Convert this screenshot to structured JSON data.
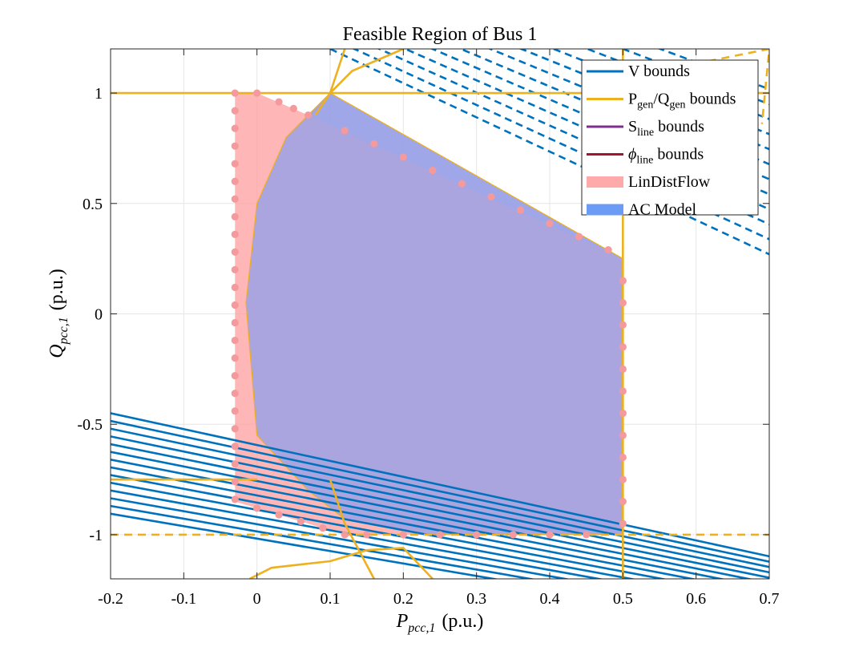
{
  "chart_data": {
    "type": "area",
    "title": "Feasible Region of Bus 1",
    "xlabel_main": "P",
    "xlabel_sub": "pcc,1",
    "xlabel_unit": "(p.u.)",
    "ylabel_main": "Q",
    "ylabel_sub": "pcc,1",
    "ylabel_unit": "(p.u.)",
    "xlim": [
      -0.2,
      0.7
    ],
    "ylim": [
      -1.2,
      1.2
    ],
    "grid": true,
    "legend_position": "top-right",
    "xticks": [
      {
        "v": -0.2,
        "label": "-0.2"
      },
      {
        "v": -0.1,
        "label": "-0.1"
      },
      {
        "v": 0,
        "label": "0"
      },
      {
        "v": 0.1,
        "label": "0.1"
      },
      {
        "v": 0.2,
        "label": "0.2"
      },
      {
        "v": 0.3,
        "label": "0.3"
      },
      {
        "v": 0.4,
        "label": "0.4"
      },
      {
        "v": 0.5,
        "label": "0.5"
      },
      {
        "v": 0.6,
        "label": "0.6"
      },
      {
        "v": 0.7,
        "label": "0.7"
      }
    ],
    "yticks": [
      {
        "v": 1,
        "label": "1"
      },
      {
        "v": 0.5,
        "label": "0.5"
      },
      {
        "v": 0,
        "label": "0"
      },
      {
        "v": -0.5,
        "label": "-0.5"
      },
      {
        "v": -1,
        "label": "-1"
      }
    ],
    "legend": [
      {
        "main": "V bounds",
        "sub": "",
        "tail": "",
        "color": "#0072BD",
        "kind": "line"
      },
      {
        "main": "P",
        "sub": "gen",
        "tail": "/Q",
        "sub2": "gen",
        "tail2": " bounds",
        "color": "#EDB120",
        "kind": "line"
      },
      {
        "main": "S",
        "sub": "line",
        "tail": " bounds",
        "color": "#7E2F8E",
        "kind": "line"
      },
      {
        "main": "ϕ",
        "sub": "line",
        "tail": " bounds",
        "color": "#A2142F",
        "kind": "line",
        "italic": true
      },
      {
        "main": "LinDistFlow",
        "sub": "",
        "tail": "",
        "color": "#FFAAAA",
        "kind": "patch"
      },
      {
        "main": "AC Model",
        "sub": "",
        "tail": "",
        "color": "#6B9BF5",
        "kind": "patch"
      }
    ],
    "colors": {
      "v_bounds": "#0072BD",
      "pq_bounds": "#EDB120",
      "lindistflow_fill": "#FF9E9E",
      "lindistflow_markers": "#F49A9C",
      "ac_fill": "#6E96F2",
      "overlap_fill": "#A0A5E6"
    },
    "series": [
      {
        "name": "LinDistFlow",
        "polygon": [
          [
            -0.03,
            1.0
          ],
          [
            0.0,
            1.0
          ],
          [
            0.07,
            0.9
          ],
          [
            0.5,
            0.25
          ],
          [
            0.5,
            -1.0
          ],
          [
            0.25,
            -1.0
          ],
          [
            0.12,
            -1.0
          ],
          [
            -0.03,
            -0.85
          ]
        ]
      },
      {
        "name": "AC Model",
        "polygon": [
          [
            0.1,
            1.0
          ],
          [
            0.5,
            0.25
          ],
          [
            0.5,
            -1.0
          ],
          [
            0.23,
            -1.0
          ],
          [
            0.12,
            -0.93
          ],
          [
            0.07,
            -0.8
          ],
          [
            0.0,
            -0.55
          ],
          [
            -0.015,
            0.05
          ],
          [
            0.0,
            0.5
          ],
          [
            0.04,
            0.8
          ]
        ]
      }
    ],
    "gen_bounds": {
      "q_max": 1.0,
      "q_min_dashed": -1.0,
      "q_min_solid": -0.75,
      "p_max": 0.5
    },
    "lindistflow_dots": [
      [
        -0.03,
        1.0
      ],
      [
        -0.03,
        0.92
      ],
      [
        -0.03,
        0.84
      ],
      [
        -0.03,
        0.76
      ],
      [
        -0.03,
        0.68
      ],
      [
        -0.03,
        0.6
      ],
      [
        -0.03,
        0.52
      ],
      [
        -0.03,
        0.44
      ],
      [
        -0.03,
        0.36
      ],
      [
        -0.03,
        0.28
      ],
      [
        -0.03,
        0.2
      ],
      [
        -0.03,
        0.12
      ],
      [
        -0.03,
        0.04
      ],
      [
        -0.03,
        -0.04
      ],
      [
        -0.03,
        -0.12
      ],
      [
        -0.03,
        -0.2
      ],
      [
        -0.03,
        -0.28
      ],
      [
        -0.03,
        -0.36
      ],
      [
        -0.03,
        -0.44
      ],
      [
        -0.03,
        -0.52
      ],
      [
        -0.03,
        -0.6
      ],
      [
        -0.03,
        -0.68
      ],
      [
        -0.03,
        -0.76
      ],
      [
        -0.03,
        -0.84
      ],
      [
        0.0,
        1.0
      ],
      [
        0.03,
        0.96
      ],
      [
        0.05,
        0.93
      ],
      [
        0.07,
        0.9
      ],
      [
        0.12,
        0.83
      ],
      [
        0.16,
        0.77
      ],
      [
        0.2,
        0.71
      ],
      [
        0.24,
        0.65
      ],
      [
        0.28,
        0.59
      ],
      [
        0.32,
        0.53
      ],
      [
        0.36,
        0.47
      ],
      [
        0.4,
        0.41
      ],
      [
        0.44,
        0.35
      ],
      [
        0.48,
        0.29
      ],
      [
        0.5,
        0.15
      ],
      [
        0.5,
        0.05
      ],
      [
        0.5,
        -0.05
      ],
      [
        0.5,
        -0.15
      ],
      [
        0.5,
        -0.25
      ],
      [
        0.5,
        -0.35
      ],
      [
        0.5,
        -0.45
      ],
      [
        0.5,
        -0.55
      ],
      [
        0.5,
        -0.65
      ],
      [
        0.5,
        -0.75
      ],
      [
        0.5,
        -0.85
      ],
      [
        0.5,
        -0.95
      ],
      [
        0.45,
        -1.0
      ],
      [
        0.4,
        -1.0
      ],
      [
        0.35,
        -1.0
      ],
      [
        0.3,
        -1.0
      ],
      [
        0.25,
        -1.0
      ],
      [
        0.2,
        -1.0
      ],
      [
        0.15,
        -1.0
      ],
      [
        0.12,
        -1.0
      ],
      [
        0.09,
        -0.97
      ],
      [
        0.06,
        -0.94
      ],
      [
        0.03,
        -0.91
      ],
      [
        0.0,
        -0.88
      ]
    ]
  }
}
